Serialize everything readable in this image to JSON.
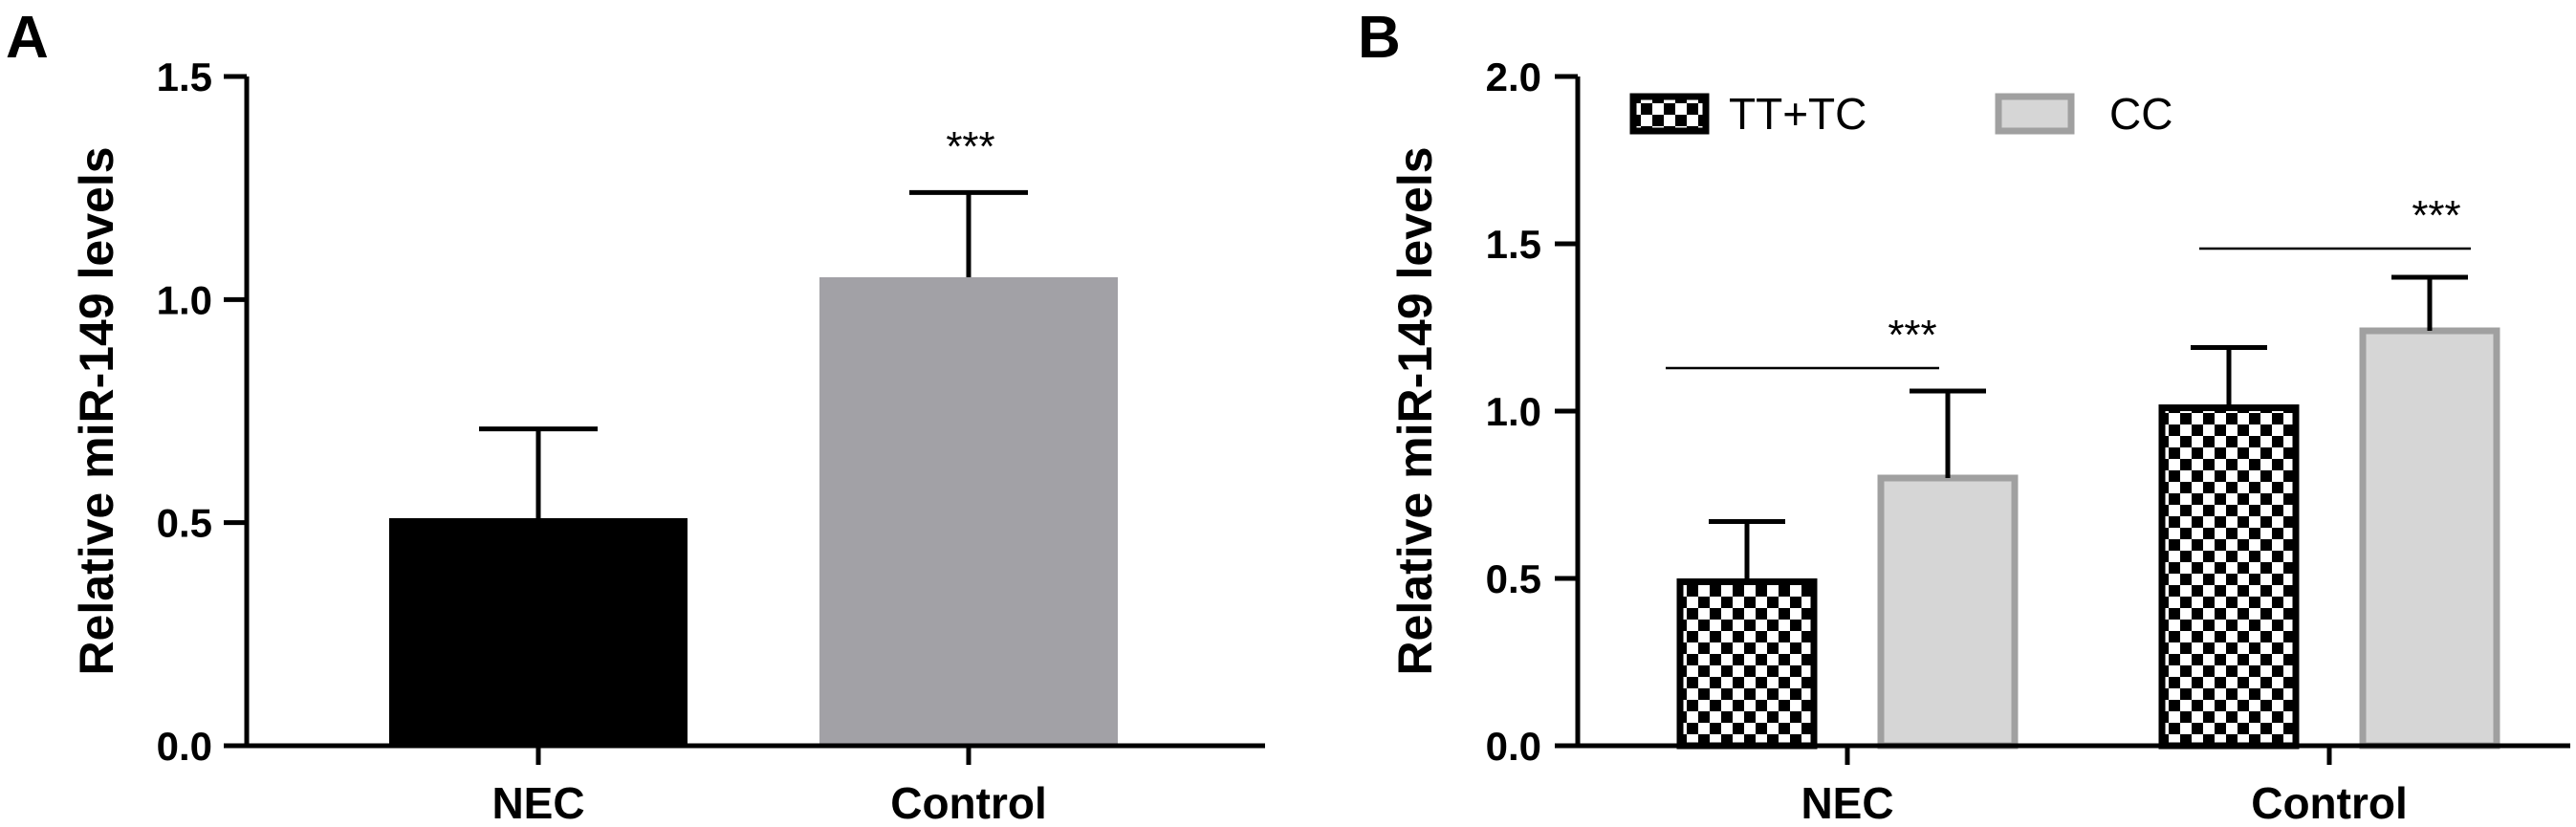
{
  "chart_data": [
    {
      "panel": "A",
      "type": "bar",
      "ylabel": "Relative miR-149 levels",
      "ylim": [
        0,
        1.5
      ],
      "yticks": [
        "0.0",
        "0.5",
        "1.0",
        "1.5"
      ],
      "categories": [
        "NEC",
        "Control"
      ],
      "values": [
        0.51,
        1.05
      ],
      "errors": [
        0.2,
        0.19
      ],
      "colors": [
        "#000000",
        "#a2a1a6"
      ],
      "annotations": [
        "***"
      ]
    },
    {
      "panel": "B",
      "type": "bar",
      "ylabel": "Relative miR-149 levels",
      "ylim": [
        0,
        2.0
      ],
      "yticks": [
        "0.0",
        "0.5",
        "1.0",
        "1.5",
        "2.0"
      ],
      "categories": [
        "NEC",
        "Control"
      ],
      "series": [
        {
          "name": "TT+TC",
          "values": [
            0.49,
            1.01
          ],
          "errors": [
            0.18,
            0.18
          ],
          "pattern": "checkerboard"
        },
        {
          "name": "CC",
          "values": [
            0.8,
            1.24
          ],
          "errors": [
            0.26,
            0.16
          ],
          "color": "#d6d6d6",
          "edge": "#a0a0a0"
        }
      ],
      "annotations": [
        "***",
        "***"
      ]
    }
  ]
}
